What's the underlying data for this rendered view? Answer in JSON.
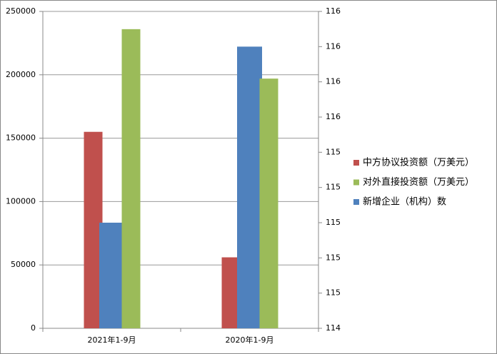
{
  "chart_data": {
    "type": "bar",
    "categories": [
      "2021年1-9月",
      "2020年1-9月"
    ],
    "series": [
      {
        "name": "中方协议投资额（万美元）",
        "color": "#c0504d",
        "values": [
          155000,
          56000
        ]
      },
      {
        "name": "对外直接投资额（万美元）",
        "color": "#9bbb59",
        "values": [
          236000,
          197000
        ]
      },
      {
        "name": "新增企业（机构）数",
        "color": "#4f81bd",
        "values": [
          115,
          116
        ],
        "axis": "y2"
      }
    ],
    "ylim": [
      0,
      250000
    ],
    "yticks": [
      0,
      50000,
      100000,
      150000,
      200000,
      250000
    ],
    "y2lim": [
      114.4,
      116.2
    ],
    "y2ticks": [
      {
        "value": 114.4,
        "label": "114"
      },
      {
        "value": 114.6,
        "label": "115"
      },
      {
        "value": 114.8,
        "label": "115"
      },
      {
        "value": 115.0,
        "label": "115"
      },
      {
        "value": 115.2,
        "label": "115"
      },
      {
        "value": 115.4,
        "label": "115"
      },
      {
        "value": 115.6,
        "label": "116"
      },
      {
        "value": 115.8,
        "label": "116"
      },
      {
        "value": 116.0,
        "label": "116"
      },
      {
        "value": 116.2,
        "label": "116"
      }
    ],
    "grid": true,
    "legend": "right"
  }
}
